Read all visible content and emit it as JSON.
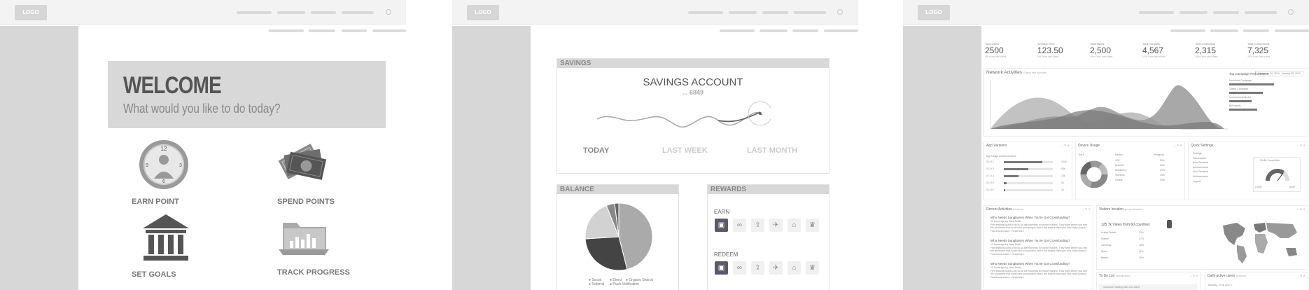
{
  "panel1": {
    "logo": "LOGO",
    "welcome_title": "WELCOME",
    "welcome_subtitle": "What would you like to do  today?",
    "tiles": [
      {
        "label": "EARN POINT",
        "icon": "clock-user-icon"
      },
      {
        "label": "SPEND POINTS",
        "icon": "money-cash-icon"
      },
      {
        "label": "SET GOALS",
        "icon": "bank-building-icon"
      },
      {
        "label": "TRACK PROGRESS",
        "icon": "folder-chart-icon"
      }
    ]
  },
  "panel2": {
    "logo": "LOGO",
    "savings": {
      "header": "SAVINGS",
      "title": "SAVINGS ACCOUNT",
      "account": "... 6849",
      "periods": [
        "TODAY",
        "LAST WEEK",
        "LAST MONTH"
      ],
      "active_period": "TODAY"
    },
    "balance": {
      "header": "BALANCE",
      "legend": [
        "Social",
        "Direct",
        "Organic Search",
        "Referral",
        "Push Notification"
      ],
      "slice_values": [
        46,
        28,
        20,
        4,
        2
      ]
    },
    "rewards": {
      "header": "REWARDS",
      "earn_label": "EARN",
      "redeem_label": "REDEEM",
      "icons": [
        "shop-icon",
        "bike-icon",
        "upload-icon",
        "run-icon",
        "car-icon",
        "cake-icon"
      ]
    }
  },
  "panel3": {
    "logo": "LOGO",
    "stats": [
      {
        "label": "Total Users",
        "value": "2500",
        "sub": "4% From last Week"
      },
      {
        "label": "Average Time",
        "value": "123.50",
        "sub": "3% From last Week"
      },
      {
        "label": "Total Males",
        "value": "2,500",
        "sub": "34% From last Week"
      },
      {
        "label": "Total Females",
        "value": "4,567",
        "sub": "12% From last Week"
      },
      {
        "label": "Total Collections",
        "value": "2,315",
        "sub": "34% From last Week"
      },
      {
        "label": "Total Connections",
        "value": "7,325",
        "sub": "34% From last Week"
      }
    ],
    "network": {
      "title": "Network Activities",
      "subtitle": "Graph title sub-title",
      "date_range": "December 30, 2014 - January 28, 2015",
      "campaign_title": "Top Campaign Performance",
      "campaigns": [
        {
          "name": "Facebook Campaign",
          "value": 0.8
        },
        {
          "name": "Twitter Campaign",
          "value": 0.6
        },
        {
          "name": "Conventional Media",
          "value": 0.4
        },
        {
          "name": "Bill boards",
          "value": 0.5
        }
      ]
    },
    "app_versions": {
      "title": "App Versions",
      "subtitle": "App Usage across versions",
      "rows": [
        {
          "label": "0.1.5.2",
          "value": "123k",
          "fill": 0.78
        },
        {
          "label": "0.1.5.3",
          "value": "53k",
          "fill": 0.5
        },
        {
          "label": "0.1.5.4",
          "value": "23k",
          "fill": 0.3
        },
        {
          "label": "0.1.5.5",
          "value": "3k",
          "fill": 0.05
        },
        {
          "label": "0.1.5.6",
          "value": "1k",
          "fill": 0.03
        }
      ]
    },
    "device_usage": {
      "title": "Device Usage",
      "col_top": "Top 5",
      "col_device": "Device",
      "col_progress": "Progress",
      "rows": [
        {
          "name": "IOS",
          "pct": "30%"
        },
        {
          "name": "Android",
          "pct": "10%"
        },
        {
          "name": "Blackberry",
          "pct": "20%"
        },
        {
          "name": "Symbian",
          "pct": "15%"
        },
        {
          "name": "Others",
          "pct": "30%"
        }
      ]
    },
    "quick_settings": {
      "title": "Quick Settings",
      "items": [
        "Settings",
        "Subscription",
        "Auto Renewal",
        "Achievements",
        "Auto Renewal",
        "Achievements",
        "Logout"
      ],
      "gauge_title": "Profile Completion",
      "gauge_value": 0.7,
      "gauge_min": "0.00%",
      "gauge_max": "100%"
    },
    "recent": {
      "title": "Recent Activities",
      "tag": "Sessions",
      "items": [
        {
          "headline": "Who Needs Sunglasses When You're Got Crossfunding?",
          "meta": "13 hours ago by Jane Smith",
          "body": "Film festivals used to be do-or-die moments for movie makers. They were where you met the producers that could fund your project, and if the buyers liked your flick, they'd pay to Fast-forward and... Read More"
        },
        {
          "headline": "Who Needs Sunglasses When You're Got Crossfunding?",
          "meta": "13 hours ago by Jane Smith",
          "body": "Film festivals used to be do-or-die moments for movie makers. They were where you met the producers that could fund your project, and if the buyers liked your flick, they'd pay to Fast-forward and... Read More"
        },
        {
          "headline": "Who Needs Sunglasses When You're Got Crossfunding?",
          "meta": "13 hours ago by Jane Smith",
          "body": "Film festivals used to be do-or-die moments for movie makers. They were where you met the producers that could fund your project, and if the buyers liked your flick, they'd pay to Fast-forward and... Read More"
        }
      ]
    },
    "visitors": {
      "title": "Visitors location",
      "tag": "geo-presentation",
      "headline": "125.7k Views from 60 countries",
      "rows": [
        {
          "country": "United States",
          "pct": "33%"
        },
        {
          "country": "France",
          "pct": "27%"
        },
        {
          "country": "Germany",
          "pct": "16%"
        },
        {
          "country": "Spain",
          "pct": "11%"
        },
        {
          "country": "Britain",
          "pct": "10%"
        }
      ]
    },
    "todo": {
      "title": "To Do List",
      "tag": "Sample tasks",
      "first_item": "Schedule meeting with new client"
    },
    "daily_users": {
      "title": "Daily active users",
      "tag": "Sessions",
      "date": "Monday, 17:16 2017 7"
    }
  }
}
